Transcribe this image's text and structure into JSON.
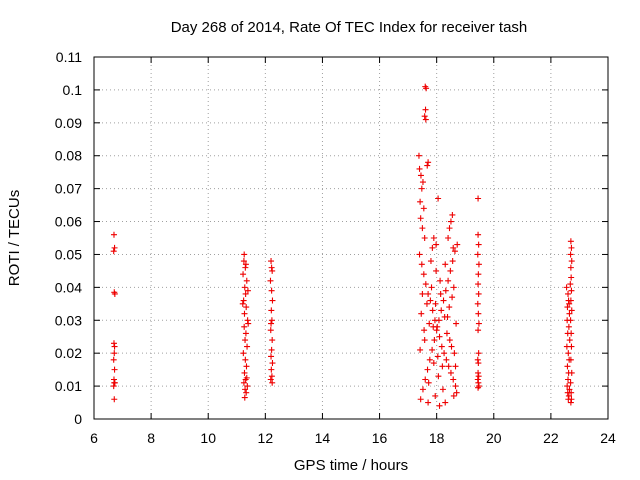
{
  "chart_data": {
    "type": "scatter",
    "title": "Day 268 of 2014, Rate Of TEC Index for receiver tash",
    "xlabel": "GPS time / hours",
    "ylabel": "ROTI / TECUs",
    "xlim": [
      6,
      24
    ],
    "ylim": [
      0,
      0.11
    ],
    "xticks": [
      6,
      8,
      10,
      12,
      14,
      16,
      18,
      20,
      22,
      24
    ],
    "xtick_labels": [
      "6",
      "8",
      "10",
      "12",
      "14",
      "16",
      "18",
      "20",
      "22",
      "24"
    ],
    "yticks": [
      0,
      0.01,
      0.02,
      0.03,
      0.04,
      0.05,
      0.06,
      0.07,
      0.08,
      0.09,
      0.1,
      0.11
    ],
    "ytick_labels": [
      "0",
      "0.01",
      "0.02",
      "0.03",
      "0.04",
      "0.05",
      "0.06",
      "0.07",
      "0.08",
      "0.09",
      "0.1",
      "0.11"
    ],
    "grid": true,
    "marker": "+",
    "marker_color": "#ee0000",
    "series": [
      {
        "name": "ROTI",
        "points": [
          [
            6.7,
            0.056
          ],
          [
            6.72,
            0.052
          ],
          [
            6.69,
            0.051
          ],
          [
            6.71,
            0.0385
          ],
          [
            6.73,
            0.038
          ],
          [
            6.7,
            0.023
          ],
          [
            6.72,
            0.022
          ],
          [
            6.71,
            0.02
          ],
          [
            6.69,
            0.018
          ],
          [
            6.72,
            0.015
          ],
          [
            6.7,
            0.012
          ],
          [
            6.71,
            0.011
          ],
          [
            6.73,
            0.011
          ],
          [
            6.69,
            0.01
          ],
          [
            6.71,
            0.006
          ],
          [
            11.25,
            0.048
          ],
          [
            11.3,
            0.046
          ],
          [
            11.22,
            0.044
          ],
          [
            11.35,
            0.042
          ],
          [
            11.28,
            0.04
          ],
          [
            11.31,
            0.038
          ],
          [
            11.24,
            0.036
          ],
          [
            11.33,
            0.034
          ],
          [
            11.27,
            0.032
          ],
          [
            11.38,
            0.03
          ],
          [
            11.26,
            0.028
          ],
          [
            11.32,
            0.026
          ],
          [
            11.29,
            0.024
          ],
          [
            11.36,
            0.022
          ],
          [
            11.23,
            0.02
          ],
          [
            11.3,
            0.018
          ],
          [
            11.34,
            0.016
          ],
          [
            11.27,
            0.014
          ],
          [
            11.31,
            0.012
          ],
          [
            11.25,
            0.011
          ],
          [
            11.37,
            0.01
          ],
          [
            11.29,
            0.009
          ],
          [
            11.33,
            0.008
          ],
          [
            11.28,
            0.0065
          ],
          [
            11.35,
            0.0125
          ],
          [
            11.32,
            0.047
          ],
          [
            11.4,
            0.029
          ],
          [
            11.21,
            0.035
          ],
          [
            11.39,
            0.039
          ],
          [
            11.26,
            0.05
          ],
          [
            12.2,
            0.048
          ],
          [
            12.24,
            0.045
          ],
          [
            12.18,
            0.042
          ],
          [
            12.22,
            0.039
          ],
          [
            12.25,
            0.036
          ],
          [
            12.21,
            0.033
          ],
          [
            12.23,
            0.03
          ],
          [
            12.19,
            0.027
          ],
          [
            12.24,
            0.024
          ],
          [
            12.22,
            0.021
          ],
          [
            12.2,
            0.019
          ],
          [
            12.25,
            0.017
          ],
          [
            12.21,
            0.015
          ],
          [
            12.23,
            0.013
          ],
          [
            12.19,
            0.012
          ],
          [
            12.24,
            0.011
          ],
          [
            12.22,
            0.046
          ],
          [
            12.2,
            0.029
          ],
          [
            17.4,
            0.076
          ],
          [
            17.45,
            0.074
          ],
          [
            17.38,
            0.08
          ],
          [
            17.52,
            0.072
          ],
          [
            17.48,
            0.07
          ],
          [
            17.42,
            0.066
          ],
          [
            17.55,
            0.064
          ],
          [
            17.44,
            0.061
          ],
          [
            17.5,
            0.058
          ],
          [
            17.58,
            0.055
          ],
          [
            17.6,
            0.101
          ],
          [
            17.63,
            0.1005
          ],
          [
            17.61,
            0.094
          ],
          [
            17.58,
            0.092
          ],
          [
            17.62,
            0.091
          ],
          [
            17.7,
            0.078
          ],
          [
            17.67,
            0.077
          ],
          [
            18.05,
            0.067
          ],
          [
            19.45,
            0.067
          ],
          [
            17.4,
            0.05
          ],
          [
            17.48,
            0.047
          ],
          [
            17.55,
            0.044
          ],
          [
            17.62,
            0.041
          ],
          [
            17.7,
            0.038
          ],
          [
            17.78,
            0.036
          ],
          [
            17.86,
            0.033
          ],
          [
            17.94,
            0.03
          ],
          [
            18.02,
            0.028
          ],
          [
            18.1,
            0.025
          ],
          [
            18.18,
            0.022
          ],
          [
            18.26,
            0.02
          ],
          [
            18.34,
            0.018
          ],
          [
            18.42,
            0.016
          ],
          [
            18.5,
            0.014
          ],
          [
            18.58,
            0.012
          ],
          [
            18.66,
            0.01
          ],
          [
            18.7,
            0.008
          ],
          [
            17.44,
            0.006
          ],
          [
            17.52,
            0.009
          ],
          [
            17.6,
            0.012
          ],
          [
            17.68,
            0.015
          ],
          [
            17.76,
            0.018
          ],
          [
            17.84,
            0.021
          ],
          [
            17.92,
            0.024
          ],
          [
            18.0,
            0.027
          ],
          [
            18.08,
            0.03
          ],
          [
            18.16,
            0.033
          ],
          [
            18.24,
            0.036
          ],
          [
            18.32,
            0.039
          ],
          [
            18.4,
            0.042
          ],
          [
            18.48,
            0.045
          ],
          [
            18.56,
            0.048
          ],
          [
            18.64,
            0.051
          ],
          [
            18.72,
            0.053
          ],
          [
            17.46,
            0.032
          ],
          [
            17.56,
            0.027
          ],
          [
            17.66,
            0.035
          ],
          [
            17.74,
            0.029
          ],
          [
            17.82,
            0.04
          ],
          [
            17.9,
            0.017
          ],
          [
            17.98,
            0.045
          ],
          [
            18.06,
            0.013
          ],
          [
            18.14,
            0.038
          ],
          [
            18.22,
            0.009
          ],
          [
            18.3,
            0.047
          ],
          [
            18.38,
            0.031
          ],
          [
            18.46,
            0.024
          ],
          [
            18.54,
            0.037
          ],
          [
            18.62,
            0.02
          ],
          [
            18.68,
            0.029
          ],
          [
            17.42,
            0.021
          ],
          [
            17.5,
            0.038
          ],
          [
            17.58,
            0.024
          ],
          [
            17.72,
            0.011
          ],
          [
            17.8,
            0.048
          ],
          [
            17.88,
            0.028
          ],
          [
            17.96,
            0.035
          ],
          [
            18.04,
            0.019
          ],
          [
            18.12,
            0.042
          ],
          [
            18.2,
            0.016
          ],
          [
            18.28,
            0.031
          ],
          [
            18.36,
            0.026
          ],
          [
            18.44,
            0.034
          ],
          [
            18.52,
            0.022
          ],
          [
            18.6,
            0.04
          ],
          [
            18.66,
            0.016
          ],
          [
            18.5,
            0.06
          ],
          [
            18.45,
            0.058
          ],
          [
            18.55,
            0.062
          ],
          [
            18.4,
            0.055
          ],
          [
            18.58,
            0.052
          ],
          [
            17.9,
            0.055
          ],
          [
            17.85,
            0.052
          ],
          [
            17.98,
            0.053
          ],
          [
            18.1,
            0.004
          ],
          [
            17.7,
            0.005
          ],
          [
            18.3,
            0.005
          ],
          [
            18.6,
            0.007
          ],
          [
            17.95,
            0.007
          ],
          [
            19.45,
            0.056
          ],
          [
            19.47,
            0.053
          ],
          [
            19.44,
            0.05
          ],
          [
            19.48,
            0.047
          ],
          [
            19.46,
            0.044
          ],
          [
            19.45,
            0.041
          ],
          [
            19.47,
            0.038
          ],
          [
            19.44,
            0.035
          ],
          [
            19.46,
            0.032
          ],
          [
            19.48,
            0.029
          ],
          [
            19.45,
            0.027
          ],
          [
            19.47,
            0.02
          ],
          [
            19.44,
            0.018
          ],
          [
            19.46,
            0.017
          ],
          [
            19.45,
            0.014
          ],
          [
            19.47,
            0.013
          ],
          [
            19.44,
            0.012
          ],
          [
            19.46,
            0.011
          ],
          [
            19.48,
            0.01
          ],
          [
            19.45,
            0.0095
          ],
          [
            22.55,
            0.04
          ],
          [
            22.6,
            0.038
          ],
          [
            22.62,
            0.036
          ],
          [
            22.58,
            0.034
          ],
          [
            22.65,
            0.032
          ],
          [
            22.57,
            0.03
          ],
          [
            22.63,
            0.028
          ],
          [
            22.59,
            0.026
          ],
          [
            22.66,
            0.024
          ],
          [
            22.56,
            0.022
          ],
          [
            22.61,
            0.02
          ],
          [
            22.64,
            0.018
          ],
          [
            22.58,
            0.016
          ],
          [
            22.62,
            0.014
          ],
          [
            22.6,
            0.012
          ],
          [
            22.57,
            0.01
          ],
          [
            22.65,
            0.009
          ],
          [
            22.59,
            0.008
          ],
          [
            22.63,
            0.007
          ],
          [
            22.61,
            0.006
          ],
          [
            22.7,
            0.054
          ],
          [
            22.72,
            0.052
          ],
          [
            22.69,
            0.05
          ],
          [
            22.73,
            0.048
          ],
          [
            22.7,
            0.046
          ],
          [
            22.71,
            0.043
          ],
          [
            22.68,
            0.041
          ],
          [
            22.72,
            0.039
          ],
          [
            22.7,
            0.036
          ],
          [
            22.73,
            0.033
          ],
          [
            22.69,
            0.03
          ],
          [
            22.71,
            0.026
          ],
          [
            22.72,
            0.022
          ],
          [
            22.7,
            0.018
          ],
          [
            22.73,
            0.014
          ],
          [
            22.69,
            0.011
          ],
          [
            22.71,
            0.008
          ],
          [
            22.72,
            0.006
          ],
          [
            22.7,
            0.005
          ],
          [
            22.64,
            0.035
          ]
        ]
      }
    ]
  }
}
